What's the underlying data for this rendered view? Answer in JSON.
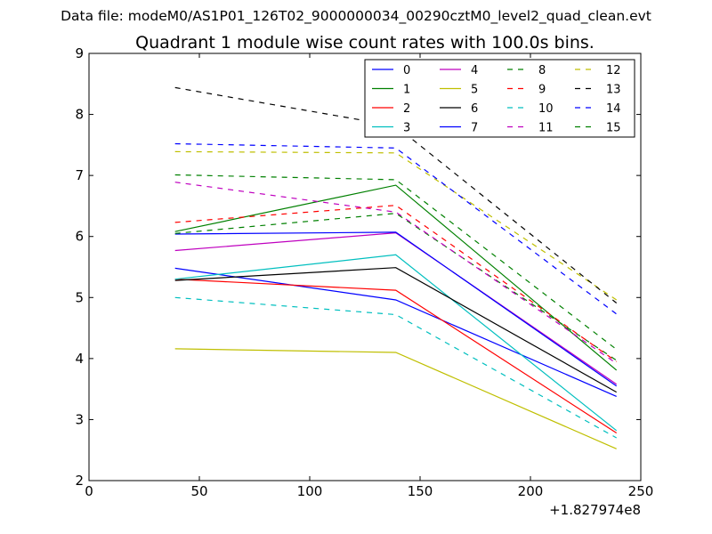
{
  "chart_data": {
    "type": "line",
    "suptitle": "Data file: modeM0/AS1P01_126T02_9000000034_00290cztM0_level2_quad_clean.evt",
    "title": "Quadrant 1 module wise count rates with 100.0s bins.",
    "xlabel": "",
    "ylabel": "",
    "xlim": [
      0,
      250
    ],
    "ylim": [
      2,
      9
    ],
    "xticks": [
      0,
      50,
      100,
      150,
      200,
      250
    ],
    "yticks": [
      2,
      3,
      4,
      5,
      6,
      7,
      8,
      9
    ],
    "x_offset_label": "+1.827974e8",
    "x": [
      39,
      139,
      239
    ],
    "legend_position": "top-right",
    "series": [
      {
        "name": "0",
        "color": "#0000ff",
        "dash": "solid",
        "values": [
          5.48,
          4.96,
          3.38
        ]
      },
      {
        "name": "1",
        "color": "#008000",
        "dash": "solid",
        "values": [
          6.08,
          6.84,
          3.81
        ]
      },
      {
        "name": "2",
        "color": "#ff0000",
        "dash": "solid",
        "values": [
          5.3,
          5.12,
          2.78
        ]
      },
      {
        "name": "3",
        "color": "#00bfbf",
        "dash": "solid",
        "values": [
          5.3,
          5.7,
          2.82
        ]
      },
      {
        "name": "4",
        "color": "#bf00bf",
        "dash": "solid",
        "values": [
          5.77,
          6.06,
          3.58
        ]
      },
      {
        "name": "5",
        "color": "#bfbf00",
        "dash": "solid",
        "values": [
          4.16,
          4.1,
          2.52
        ]
      },
      {
        "name": "6",
        "color": "#000000",
        "dash": "solid",
        "values": [
          5.28,
          5.49,
          3.45
        ]
      },
      {
        "name": "7",
        "color": "#0000ff",
        "dash": "solid",
        "values": [
          6.04,
          6.07,
          3.55
        ]
      },
      {
        "name": "8",
        "color": "#008000",
        "dash": "dashed",
        "values": [
          6.05,
          6.38,
          3.97
        ]
      },
      {
        "name": "9",
        "color": "#ff0000",
        "dash": "dashed",
        "values": [
          6.23,
          6.51,
          3.95
        ]
      },
      {
        "name": "10",
        "color": "#00bfbf",
        "dash": "dashed",
        "values": [
          5.0,
          4.72,
          2.7
        ]
      },
      {
        "name": "11",
        "color": "#bf00bf",
        "dash": "dashed",
        "values": [
          6.89,
          6.4,
          3.92
        ]
      },
      {
        "name": "12",
        "color": "#bfbf00",
        "dash": "dashed",
        "values": [
          7.39,
          7.37,
          4.96
        ]
      },
      {
        "name": "13",
        "color": "#000000",
        "dash": "dashed",
        "values": [
          8.44,
          7.81,
          4.91
        ]
      },
      {
        "name": "14",
        "color": "#0000ff",
        "dash": "dashed",
        "values": [
          7.52,
          7.45,
          4.73
        ]
      },
      {
        "name": "15",
        "color": "#008000",
        "dash": "dashed",
        "values": [
          7.01,
          6.93,
          4.15
        ]
      }
    ]
  }
}
